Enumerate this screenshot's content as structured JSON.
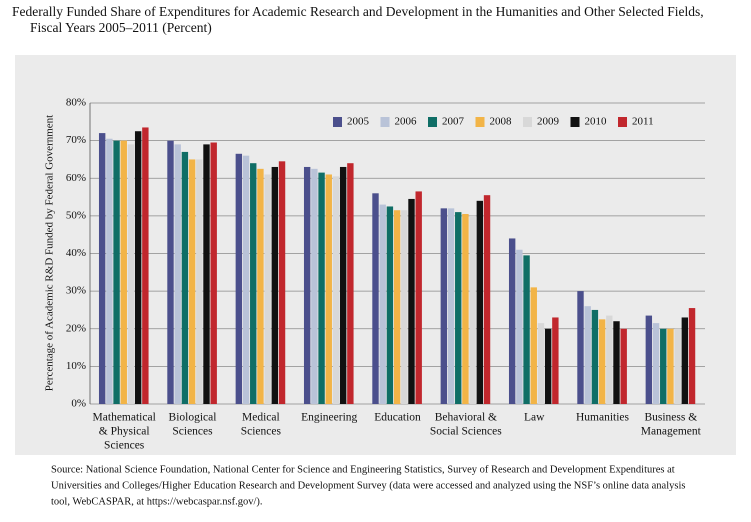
{
  "chart_data": {
    "type": "bar",
    "title": [
      "Federally Funded Share of Expenditures for Academic Research and Development in the Humanities and Other Selected Fields,",
      "Fiscal Years 2005–2011 (Percent)"
    ],
    "ylabel": "Percentage of Academic R&D Funded by Federal Government",
    "categories": [
      [
        "Mathematical",
        "& Physical",
        "Sciences"
      ],
      [
        "Biological",
        "Sciences"
      ],
      [
        "Medical",
        "Sciences"
      ],
      [
        "Engineering"
      ],
      [
        "Education"
      ],
      [
        "Behavioral &",
        "Social Sciences"
      ],
      [
        "Law"
      ],
      [
        "Humanities"
      ],
      [
        "Business &",
        "Management"
      ]
    ],
    "series": [
      {
        "name": "2005",
        "color": "#4b4f8c",
        "values": [
          72,
          70,
          66.5,
          63,
          56,
          52,
          44,
          30,
          23.5
        ]
      },
      {
        "name": "2006",
        "color": "#b9c3d8",
        "values": [
          70.5,
          69,
          66,
          62.5,
          53,
          52,
          41,
          26,
          21.5
        ]
      },
      {
        "name": "2007",
        "color": "#0f6e66",
        "values": [
          70,
          67,
          64,
          61.5,
          52.5,
          51,
          39.5,
          25,
          20
        ]
      },
      {
        "name": "2008",
        "color": "#f2b447",
        "values": [
          70,
          65,
          62.5,
          61,
          51.5,
          50.5,
          31,
          22.5,
          20
        ]
      },
      {
        "name": "2009",
        "color": "#d8d8d8",
        "values": [
          69,
          65,
          61,
          60.5,
          51.5,
          50,
          21.5,
          23.5,
          20
        ]
      },
      {
        "name": "2010",
        "color": "#111111",
        "values": [
          72.5,
          69,
          63,
          63,
          54.5,
          54,
          20,
          22,
          23
        ]
      },
      {
        "name": "2011",
        "color": "#c1272d",
        "values": [
          73.5,
          69.5,
          64.5,
          64,
          56.5,
          55.5,
          23,
          20,
          25.5
        ]
      }
    ],
    "ylim": [
      0,
      80
    ],
    "yticks": [
      {
        "value": 0,
        "label": "0%"
      },
      {
        "value": 10,
        "label": "10%"
      },
      {
        "value": 20,
        "label": "20%"
      },
      {
        "value": 30,
        "label": "30%"
      },
      {
        "value": 40,
        "label": "40%"
      },
      {
        "value": 50,
        "label": "50%"
      },
      {
        "value": 60,
        "label": "60%"
      },
      {
        "value": 70,
        "label": "70%"
      },
      {
        "value": 80,
        "label": "80%"
      }
    ],
    "grid": true,
    "legend_position": "top-right",
    "source": [
      "Source: National Science Foundation, National Center for Science and Engineering Statistics, Survey of Research and Development Expenditures at",
      "Universities and Colleges/Higher Education Research and Development Survey (data were accessed and analyzed using the NSF’s online data analysis",
      "tool, WebCASPAR, at https://webcaspar.nsf.gov/)."
    ]
  }
}
